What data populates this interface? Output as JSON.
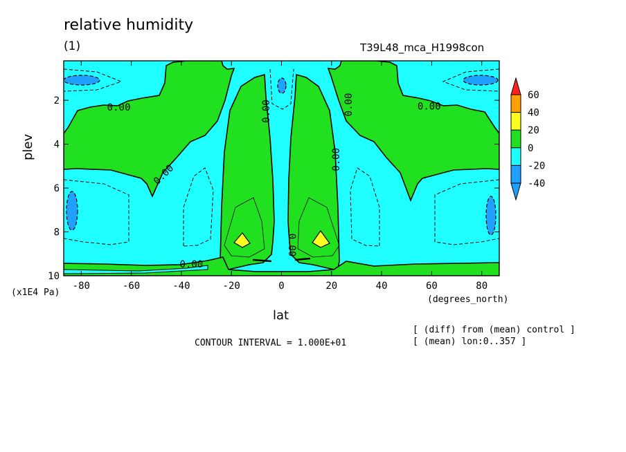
{
  "chart_data": {
    "type": "heatmap",
    "title": "relative humidity",
    "subtitle": "(1)",
    "run_name": "T39L48_mca_H1998con",
    "xlabel": "lat",
    "ylabel": "plev",
    "x_unit": "(degrees_north)",
    "y_unit": "(x1E4 Pa)",
    "xlim": [
      -87,
      87
    ],
    "ylim": [
      10,
      0.2
    ],
    "x_ticks": [
      -80,
      -60,
      -40,
      -20,
      0,
      20,
      40,
      60,
      80
    ],
    "x_tick_labels": [
      "-80",
      "-60",
      "-40",
      "-20",
      "0",
      "20",
      "40",
      "60",
      "80"
    ],
    "y_ticks": [
      2,
      4,
      6,
      8,
      10
    ],
    "y_tick_labels": [
      "2",
      "4",
      "6",
      "8",
      "10"
    ],
    "contour_interval_text": "CONTOUR INTERVAL = 1.000E+01",
    "notes": [
      "[ (diff) from (mean) control ]",
      "[ (mean) lon:0..357 ]"
    ],
    "contour_labels": [
      {
        "text": "0.00",
        "lat": -65,
        "plev": 2.35,
        "angle": 0
      },
      {
        "text": "0.00",
        "lat": -47,
        "plev": 5.4,
        "angle": -45
      },
      {
        "text": "0.00",
        "lat": -36,
        "plev": 9.5,
        "angle": 0
      },
      {
        "text": "0.00",
        "lat": -6,
        "plev": 2.5,
        "angle": -90
      },
      {
        "text": "0.00",
        "lat": 22,
        "plev": 4.7,
        "angle": -90
      },
      {
        "text": "0.00",
        "lat": 27,
        "plev": 2.2,
        "angle": -90
      },
      {
        "text": "0.00",
        "lat": 4,
        "plev": 8.6,
        "angle": 90
      },
      {
        "text": "0.00",
        "lat": 59,
        "plev": 2.3,
        "angle": 0
      }
    ],
    "legend": {
      "levels": [
        "60",
        "40",
        "20",
        "0",
        "-20",
        "-40"
      ],
      "colors": [
        "#ff2020",
        "#ff9f00",
        "#ffff20",
        "#20e020",
        "#20ffff",
        "#20a0ff"
      ],
      "bin_colors_top_to_bottom": [
        "#ff9f00",
        "#ffff20",
        "#20e020",
        "#20ffff",
        "#20a0ff"
      ]
    },
    "field_colors": {
      "neg20_to_0": "#20ffff",
      "zero_to_20": "#20e020",
      "pos20_to_40": "#ffff20",
      "neg40_to_neg20": "#20a0ff"
    }
  }
}
